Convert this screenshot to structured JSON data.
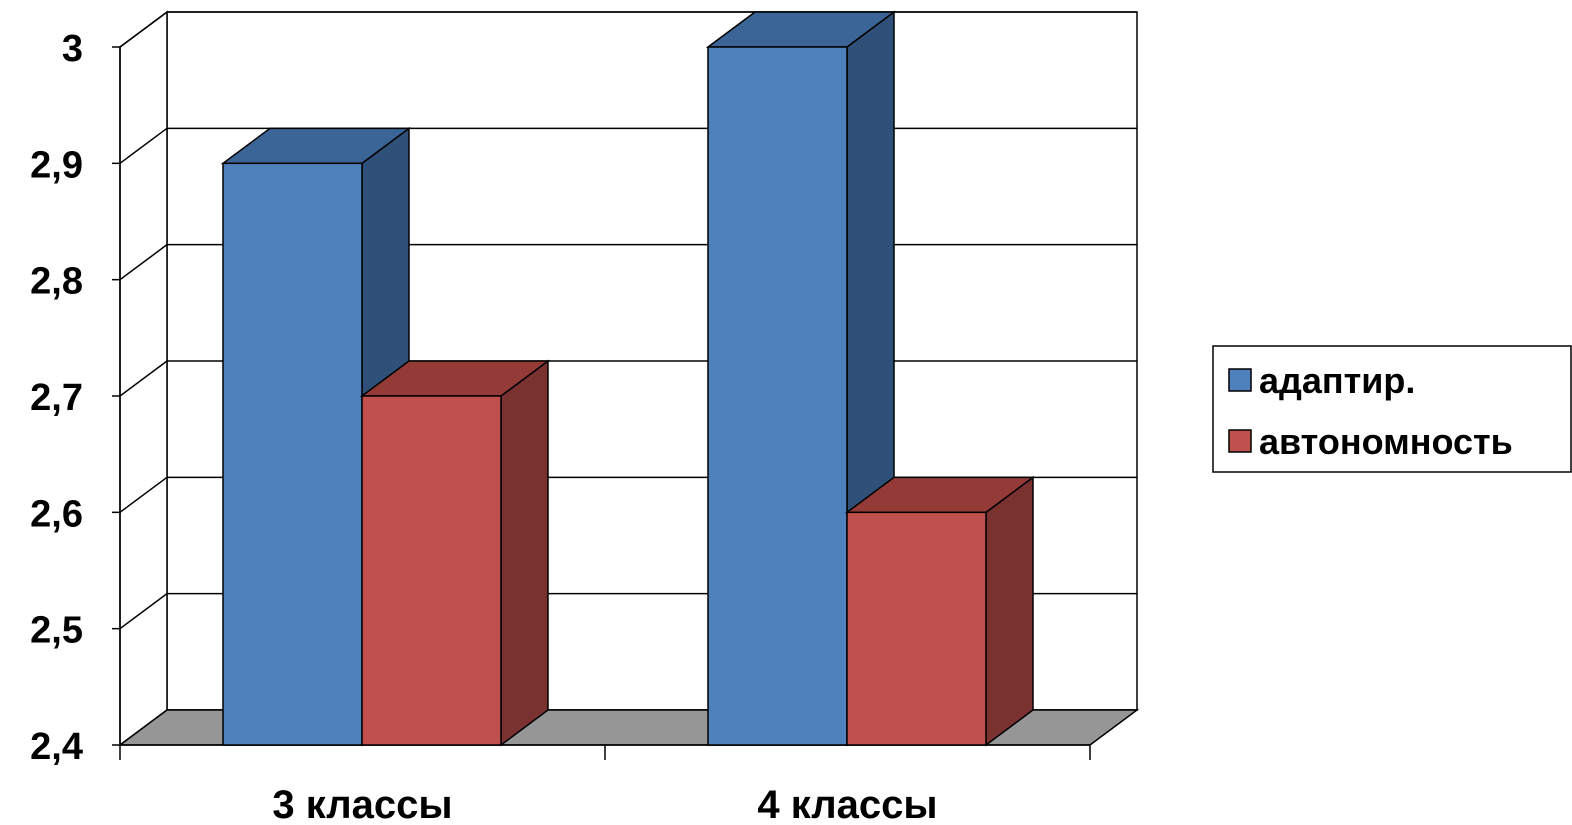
{
  "chart_data": {
    "type": "bar",
    "title": "",
    "xlabel": "",
    "ylabel": "",
    "categories": [
      "3 классы",
      "4 классы"
    ],
    "series": [
      {
        "name": "адаптир.",
        "values": [
          2.9,
          3.0
        ],
        "color": "#4F81BD",
        "side_color": "#2F5078",
        "top_color": "#3A6596"
      },
      {
        "name": "автономность",
        "values": [
          2.7,
          2.6
        ],
        "color": "#C0504D",
        "side_color": "#7A3230",
        "top_color": "#943B38"
      }
    ],
    "ylim": [
      2.4,
      3.0
    ],
    "yticks": [
      "2,4",
      "2,5",
      "2,6",
      "2,7",
      "2,8",
      "2,9",
      "3"
    ],
    "ytick_values": [
      2.4,
      2.5,
      2.6,
      2.7,
      2.8,
      2.9,
      3.0
    ],
    "grid": true,
    "three_d": true,
    "legend_position": "right",
    "floor_color": "#969696"
  }
}
